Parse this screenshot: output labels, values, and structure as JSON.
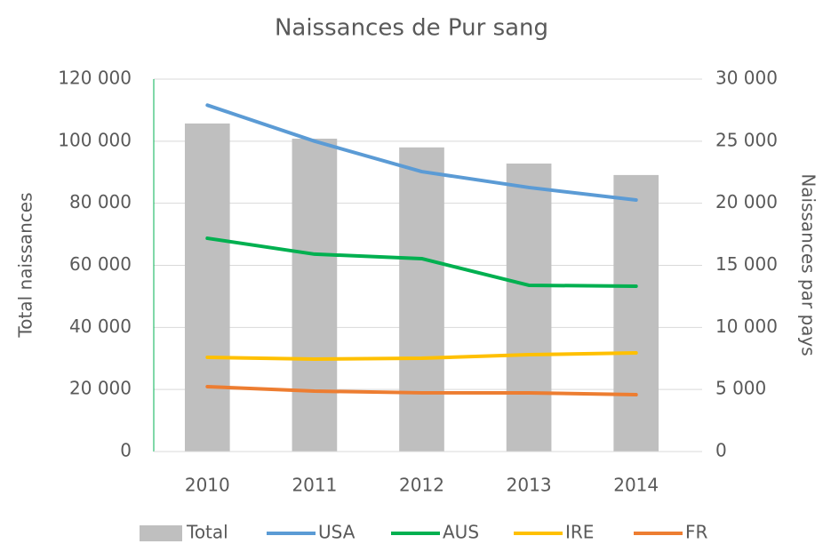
{
  "chart_data": {
    "type": "combo",
    "title": "Naissances de Pur sang",
    "ylabel": "Total naissances",
    "y2label": "Naissances par pays",
    "categories": [
      "2010",
      "2011",
      "2012",
      "2013",
      "2014"
    ],
    "series": [
      {
        "name": "Total",
        "type": "bar",
        "color": "#bfbfbf",
        "axis": "y",
        "values": [
          105700,
          100800,
          98000,
          92800,
          89100
        ]
      },
      {
        "name": "USA",
        "type": "line",
        "color": "#5b9bd5",
        "axis": "y2",
        "values": [
          27900,
          25000,
          22550,
          21270,
          20260
        ]
      },
      {
        "name": "AUS",
        "type": "line",
        "color": "#00b050",
        "axis": "y2",
        "values": [
          17180,
          15900,
          15540,
          13390,
          13320
        ]
      },
      {
        "name": "IRE",
        "type": "line",
        "color": "#ffc000",
        "axis": "y2",
        "values": [
          7590,
          7450,
          7520,
          7800,
          7950
        ]
      },
      {
        "name": "FR",
        "type": "line",
        "color": "#ed7d31",
        "axis": "y2",
        "values": [
          5230,
          4870,
          4730,
          4730,
          4580
        ]
      }
    ],
    "ylim": [
      0,
      120000
    ],
    "yticks": [
      0,
      {
        "value": 20000,
        "label": "20 000"
      },
      {
        "value": 40000,
        "label": "40 000"
      },
      {
        "value": 60000,
        "label": "60 000"
      },
      {
        "value": 80000,
        "label": "80 000"
      },
      {
        "value": 100000,
        "label": "100 000"
      },
      {
        "value": 120000,
        "label": "120 000"
      }
    ],
    "y2lim": [
      0,
      30000
    ],
    "y2ticks": [
      0,
      {
        "value": 5000,
        "label": "5 000"
      },
      {
        "value": 10000,
        "label": "10 000"
      },
      {
        "value": 15000,
        "label": "15 000"
      },
      {
        "value": 20000,
        "label": "20 000"
      },
      {
        "value": 25000,
        "label": "25 000"
      },
      {
        "value": 30000,
        "label": "30 000"
      }
    ],
    "grid": true,
    "legend": "bottom"
  }
}
